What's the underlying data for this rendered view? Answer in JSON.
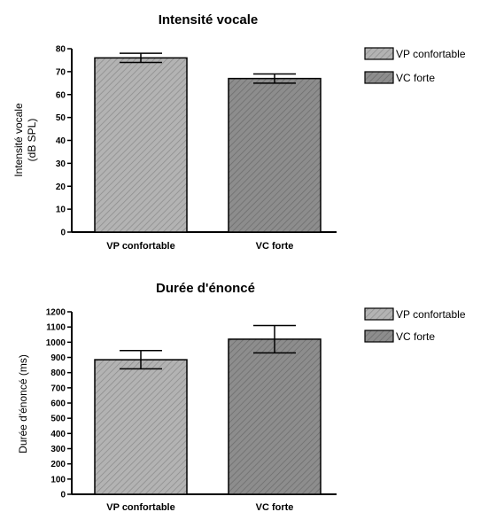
{
  "chart_data": [
    {
      "type": "bar",
      "title": "Intensité vocale",
      "ylabel_lines": [
        "Intensité vocale",
        "(dB SPL)"
      ],
      "categories": [
        "VP confortable",
        "VC forte"
      ],
      "values": [
        76,
        67
      ],
      "errors": [
        2,
        2
      ],
      "ylim": [
        0,
        80
      ],
      "yticks": [
        0,
        10,
        20,
        30,
        40,
        50,
        60,
        70,
        80
      ],
      "legend": [
        "VP confortable",
        "VC forte"
      ],
      "colors": [
        "#b0b0b0",
        "#8a8a8a"
      ]
    },
    {
      "type": "bar",
      "title": "Durée d'énoncé",
      "ylabel_lines": [
        "Durée d'énoncé (ms)"
      ],
      "categories": [
        "VP confortable",
        "VC forte"
      ],
      "values": [
        885,
        1020
      ],
      "errors": [
        60,
        90
      ],
      "ylim": [
        0,
        1200
      ],
      "yticks": [
        0,
        100,
        200,
        300,
        400,
        500,
        600,
        700,
        800,
        900,
        1000,
        1100,
        1200
      ],
      "legend": [
        "VP confortable",
        "VC forte"
      ],
      "colors": [
        "#b0b0b0",
        "#8a8a8a"
      ]
    }
  ]
}
